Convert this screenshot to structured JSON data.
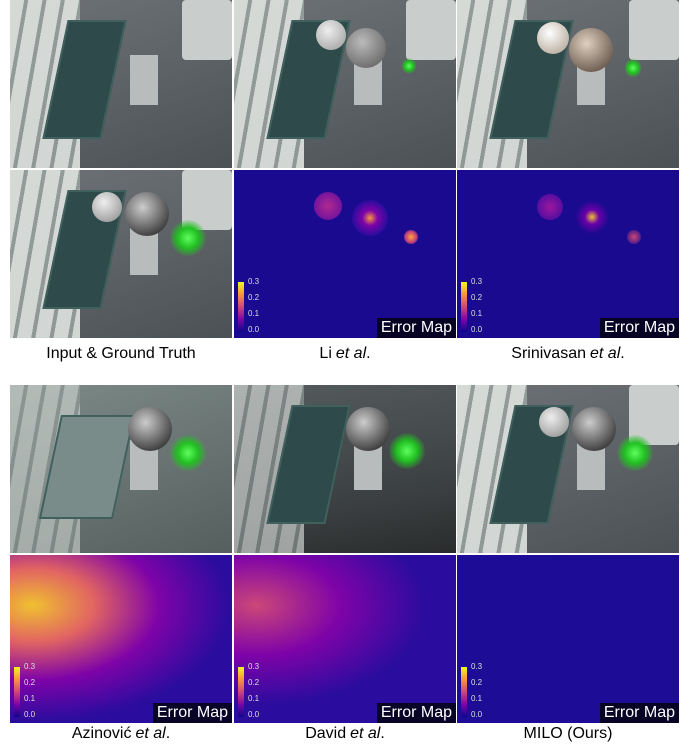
{
  "captions": [
    {
      "main": "Input & Ground Truth"
    },
    {
      "main": "Li",
      "italic": "et al",
      "tail": "."
    },
    {
      "main": "Srinivasan",
      "italic": "et al",
      "tail": "."
    },
    {
      "main": "Azinović",
      "italic": "et al",
      "tail": "."
    },
    {
      "main": "David",
      "italic": "et al",
      "tail": "."
    },
    {
      "main": "MILO (Ours)"
    }
  ],
  "error_maps": [
    {
      "label": "Error Map",
      "colorbar_ticks": [
        "0.3",
        "0.2",
        "0.1",
        "0.0"
      ]
    },
    {
      "label": "Error Map",
      "colorbar_ticks": [
        "0.3",
        "0.2",
        "0.1",
        "0.0"
      ]
    },
    {
      "label": "Error Map",
      "colorbar_ticks": [
        "0.3",
        "0.2",
        "0.1",
        "0.0"
      ]
    },
    {
      "label": "Error Map",
      "colorbar_ticks": [
        "0.3",
        "0.2",
        "0.1",
        "0.0"
      ]
    },
    {
      "label": "Error Map",
      "colorbar_ticks": [
        "0.3",
        "0.2",
        "0.1",
        "0.0"
      ]
    }
  ]
}
